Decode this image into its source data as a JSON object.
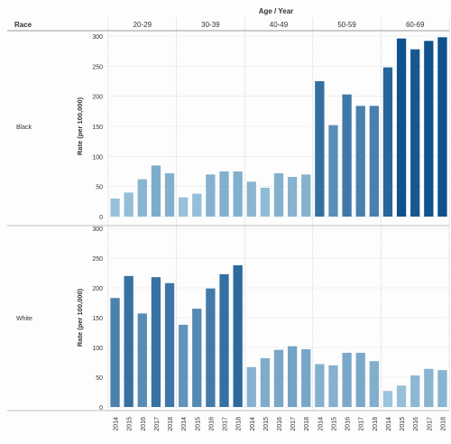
{
  "header": {
    "row_label": "Race",
    "column_title": "Age / Year"
  },
  "chart_data": {
    "type": "bar",
    "title": "Age / Year",
    "ylabel": "Rate (per 100,000)",
    "ylim": [
      0,
      300
    ],
    "yticks": [
      0,
      50,
      100,
      150,
      200,
      250,
      300
    ],
    "age_groups": [
      "20-29",
      "30-39",
      "40-49",
      "50-59",
      "60-69"
    ],
    "years": [
      "2014",
      "2015",
      "2016",
      "2017",
      "2018"
    ],
    "panels": [
      {
        "race": "Black",
        "groups": [
          {
            "age": "20-29",
            "values": [
              30,
              40,
              62,
              85,
              72
            ]
          },
          {
            "age": "30-39",
            "values": [
              32,
              38,
              70,
              75,
              75
            ]
          },
          {
            "age": "40-49",
            "values": [
              58,
              48,
              72,
              66,
              70
            ]
          },
          {
            "age": "50-59",
            "values": [
              225,
              152,
              203,
              184,
              184
            ]
          },
          {
            "age": "60-69",
            "values": [
              248,
              296,
              278,
              292,
              298
            ]
          }
        ]
      },
      {
        "race": "White",
        "groups": [
          {
            "age": "20-29",
            "values": [
              183,
              220,
              157,
              218,
              208
            ]
          },
          {
            "age": "30-39",
            "values": [
              138,
              165,
              199,
              223,
              238
            ]
          },
          {
            "age": "40-49",
            "values": [
              67,
              82,
              96,
              102,
              97
            ]
          },
          {
            "age": "50-59",
            "values": [
              72,
              70,
              91,
              91,
              77
            ]
          },
          {
            "age": "60-69",
            "values": [
              27,
              36,
              53,
              64,
              62
            ]
          }
        ]
      }
    ],
    "color_scale": {
      "low": "#a9cfe3",
      "high": "#0d4f8b",
      "min": 0,
      "max": 300
    },
    "grid": true
  }
}
